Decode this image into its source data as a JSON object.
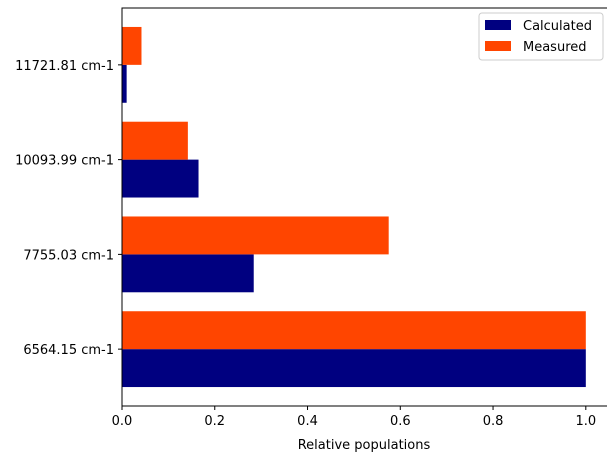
{
  "chart_data": {
    "type": "bar",
    "orientation": "horizontal",
    "categories": [
      "6564.15 cm-1",
      "7755.03 cm-1",
      "10093.99 cm-1",
      "11721.81 cm-1"
    ],
    "series": [
      {
        "name": "Calculated",
        "color": "#000080",
        "values": [
          1.0,
          0.284,
          0.165,
          0.01
        ]
      },
      {
        "name": "Measured",
        "color": "#ff4500",
        "values": [
          1.0,
          0.575,
          0.142,
          0.042
        ]
      }
    ],
    "xlabel": "Relative populations",
    "ylabel": "",
    "title": "",
    "xlim": [
      0,
      1.05
    ],
    "xticks": [
      0.0,
      0.2,
      0.4,
      0.6,
      0.8,
      1.0
    ],
    "xtick_labels": [
      "0.0",
      "0.2",
      "0.4",
      "0.6",
      "0.8",
      "1.0"
    ],
    "grid": false,
    "legend_position": "top-right"
  }
}
